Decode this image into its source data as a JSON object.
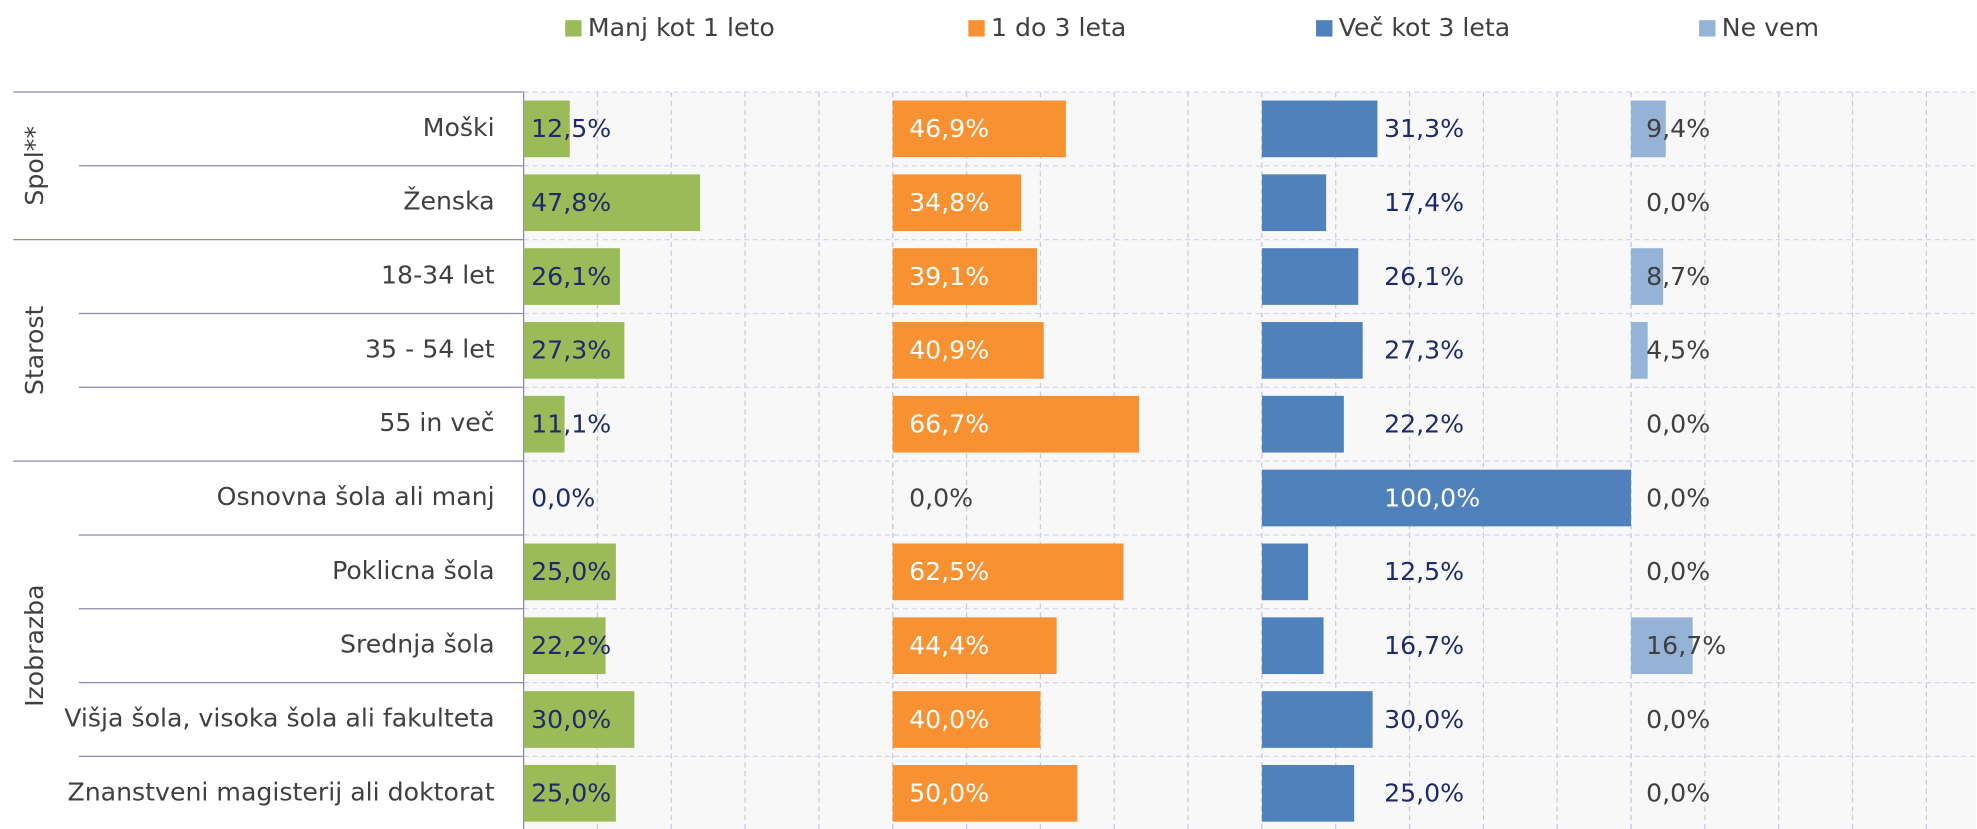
{
  "chart_data": {
    "type": "bar",
    "orientation": "horizontal",
    "groups": [
      {
        "name": "Spol**",
        "categories": [
          "Moški",
          "Ženska"
        ]
      },
      {
        "name": "Starost",
        "categories": [
          "18-34 let",
          "35 - 54 let",
          "55 in več"
        ]
      },
      {
        "name": "Izobrazba",
        "categories": [
          "Osnovna šola ali manj",
          "Poklicna šola",
          "Srednja šola",
          "Višja šola, visoka šola ali fakulteta",
          "Znanstveni magisterij ali doktorat"
        ]
      }
    ],
    "series": [
      {
        "name": "Manj kot 1 leto",
        "color": "#9bbb59",
        "values": [
          12.5,
          47.8,
          26.1,
          27.3,
          11.1,
          0.0,
          25.0,
          22.2,
          30.0,
          25.0
        ],
        "value_labels": [
          "12,5%",
          "47,8%",
          "26,1%",
          "27,3%",
          "11,1%",
          "0,0%",
          "25,0%",
          "22,2%",
          "30,0%",
          "25,0%"
        ]
      },
      {
        "name": "1 do 3 leta",
        "color": "#f79131",
        "values": [
          46.9,
          34.8,
          39.1,
          40.9,
          66.7,
          0.0,
          62.5,
          44.4,
          40.0,
          50.0
        ],
        "value_labels": [
          "46,9%",
          "34,8%",
          "39,1%",
          "40,9%",
          "66,7%",
          "0,0%",
          "62,5%",
          "44,4%",
          "40,0%",
          "50,0%"
        ]
      },
      {
        "name": "Več kot 3 leta",
        "color": "#4f81bd",
        "values": [
          31.3,
          17.4,
          26.1,
          27.3,
          22.2,
          100.0,
          12.5,
          16.7,
          30.0,
          25.0
        ],
        "value_labels": [
          "31,3%",
          "17,4%",
          "26,1%",
          "27,3%",
          "22,2%",
          "100,0%",
          "12,5%",
          "16,7%",
          "30,0%",
          "25,0%"
        ]
      },
      {
        "name": "Ne vem",
        "color": "#95b3d7",
        "values": [
          9.4,
          0.0,
          8.7,
          4.5,
          0.0,
          0.0,
          0.0,
          16.7,
          0.0,
          0.0
        ],
        "value_labels": [
          "9,4%",
          "0,0%",
          "8,7%",
          "4,5%",
          "0,0%",
          "0,0%",
          "0,0%",
          "16,7%",
          "0,0%",
          "0,0%"
        ]
      }
    ],
    "xlim": [
      0,
      100
    ],
    "xticks": [
      0,
      20,
      40,
      60,
      80,
      100
    ],
    "grid": true
  }
}
